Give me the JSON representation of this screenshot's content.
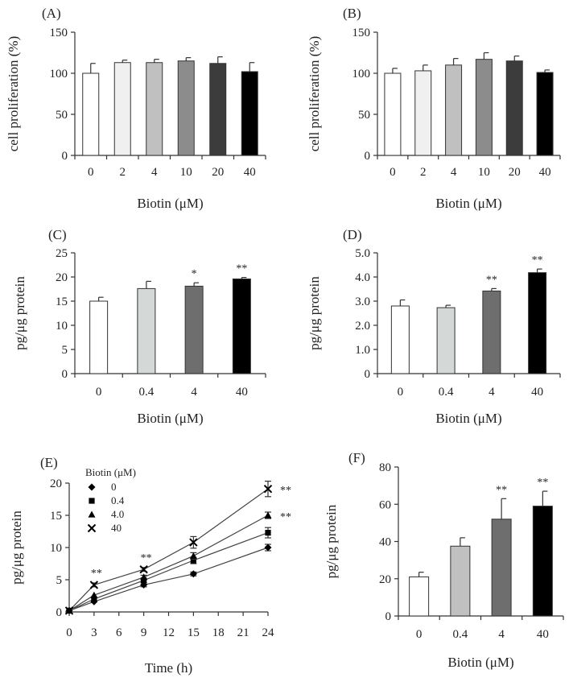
{
  "chart_data": [
    {
      "id": "A",
      "type": "bar",
      "panel_label": "(A)",
      "xlabel": "Biotin (μM)",
      "ylabel": "cell proliferation (%)",
      "categories": [
        "0",
        "2",
        "4",
        "10",
        "20",
        "40"
      ],
      "values": [
        100,
        113,
        113,
        115,
        112,
        102
      ],
      "errors": [
        12,
        3,
        4,
        4,
        8,
        11
      ],
      "colors": [
        "#ffffff",
        "#f0f0f0",
        "#c0c0c0",
        "#8c8c8c",
        "#3c3c3c",
        "#000000"
      ],
      "significance": [
        "",
        "",
        "",
        "",
        "",
        ""
      ],
      "ylim": [
        0,
        150
      ],
      "yticks": [
        "0",
        "50",
        "100",
        "150"
      ]
    },
    {
      "id": "B",
      "type": "bar",
      "panel_label": "(B)",
      "xlabel": "Biotin (μM)",
      "ylabel": "cell proliferation (%)",
      "categories": [
        "0",
        "2",
        "4",
        "10",
        "20",
        "40"
      ],
      "values": [
        100,
        103,
        110,
        117,
        115,
        101
      ],
      "errors": [
        6,
        7,
        8,
        8,
        6,
        3
      ],
      "colors": [
        "#ffffff",
        "#f0f0f0",
        "#c0c0c0",
        "#8c8c8c",
        "#3c3c3c",
        "#000000"
      ],
      "significance": [
        "",
        "",
        "",
        "",
        "",
        ""
      ],
      "ylim": [
        0,
        150
      ],
      "yticks": [
        "0",
        "50",
        "100",
        "150"
      ]
    },
    {
      "id": "C",
      "type": "bar",
      "panel_label": "(C)",
      "xlabel": "Biotin (μM)",
      "ylabel": "pg/μg protein",
      "categories": [
        "0",
        "0.4",
        "4",
        "40"
      ],
      "values": [
        15.0,
        17.6,
        18.1,
        19.6
      ],
      "errors": [
        0.8,
        1.5,
        0.7,
        0.3
      ],
      "colors": [
        "#ffffff",
        "#d4d8d6",
        "#6e6e6e",
        "#000000"
      ],
      "significance": [
        "",
        "",
        "*",
        "**"
      ],
      "ylim": [
        0,
        25
      ],
      "yticks": [
        "0",
        "5",
        "10",
        "15",
        "20",
        "25"
      ]
    },
    {
      "id": "D",
      "type": "bar",
      "panel_label": "(D)",
      "xlabel": "Biotin (μM)",
      "ylabel": "pg/μg protein",
      "categories": [
        "0",
        "0.4",
        "4",
        "40"
      ],
      "values": [
        2.8,
        2.73,
        3.42,
        4.18
      ],
      "errors": [
        0.25,
        0.1,
        0.1,
        0.15
      ],
      "colors": [
        "#ffffff",
        "#d4d8d6",
        "#6e6e6e",
        "#000000"
      ],
      "significance": [
        "",
        "",
        "**",
        "**"
      ],
      "ylim": [
        0,
        5
      ],
      "yticks": [
        "0",
        "1.0",
        "2.0",
        "3.0",
        "4.0",
        "5.0"
      ]
    },
    {
      "id": "E",
      "type": "line",
      "panel_label": "(E)",
      "xlabel": "Time (h)",
      "ylabel": "pg/μg protein",
      "legend_title": "Biotin (μM)",
      "x": [
        0,
        3,
        9,
        15,
        24
      ],
      "series": [
        {
          "name": "0",
          "marker": "diamond",
          "values": [
            0.2,
            1.6,
            4.2,
            5.9,
            10.0
          ],
          "errors": [
            0.1,
            0.2,
            0.3,
            0.3,
            0.5
          ]
        },
        {
          "name": "0.4",
          "marker": "square",
          "values": [
            0.2,
            2.0,
            4.9,
            8.0,
            12.3
          ],
          "errors": [
            0.1,
            0.2,
            0.3,
            0.5,
            0.8
          ]
        },
        {
          "name": "4.0",
          "marker": "triangle",
          "values": [
            0.2,
            2.6,
            5.4,
            8.7,
            15.0
          ],
          "errors": [
            0.1,
            0.2,
            0.3,
            0.5,
            0.5
          ]
        },
        {
          "name": "40",
          "marker": "cross",
          "values": [
            0.2,
            4.2,
            6.6,
            10.8,
            19.1
          ],
          "errors": [
            0.1,
            0.3,
            0.3,
            0.9,
            1.2
          ]
        }
      ],
      "significance": [
        {
          "x": 3,
          "label": "**"
        },
        {
          "x": 9,
          "label": "**"
        },
        {
          "x": 24,
          "y": 19.1,
          "label": "**",
          "side": "right"
        },
        {
          "x": 24,
          "y": 15.0,
          "label": "**",
          "side": "right"
        }
      ],
      "xlim": [
        0,
        24
      ],
      "xticks": [
        "0",
        "3",
        "6",
        "9",
        "12",
        "15",
        "18",
        "21",
        "24"
      ],
      "ylim": [
        0,
        20
      ],
      "yticks": [
        "0",
        "5",
        "10",
        "15",
        "20"
      ]
    },
    {
      "id": "F",
      "type": "bar",
      "panel_label": "(F)",
      "xlabel": "Biotin (μM)",
      "ylabel": "pg/μg protein",
      "categories": [
        "0",
        "0.4",
        "4",
        "40"
      ],
      "values": [
        21,
        37.5,
        52,
        59
      ],
      "errors": [
        2.5,
        4.5,
        11,
        8
      ],
      "colors": [
        "#ffffff",
        "#c0c0c0",
        "#6e6e6e",
        "#000000"
      ],
      "significance": [
        "",
        "",
        "**",
        "**"
      ],
      "ylim": [
        0,
        80
      ],
      "yticks": [
        "0",
        "20",
        "40",
        "60",
        "80"
      ]
    }
  ]
}
